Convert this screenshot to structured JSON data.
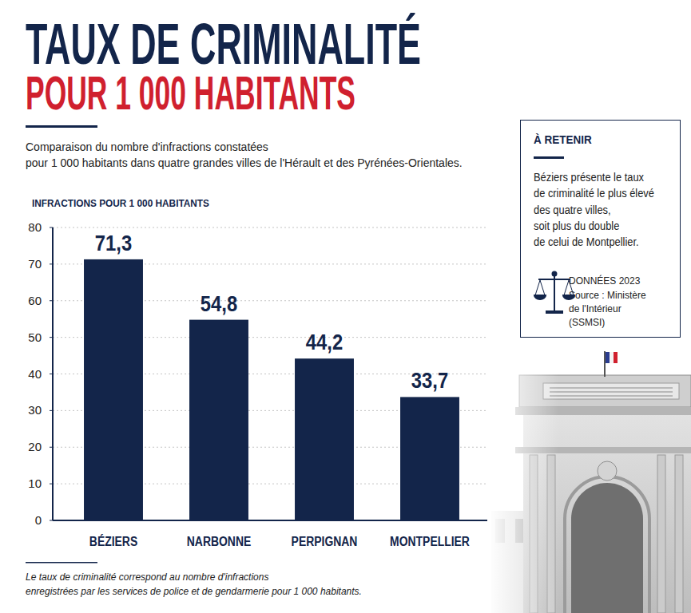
{
  "chart_data": {
    "type": "bar",
    "title": "TAUX DE CRIMINALITÉ",
    "subtitle": "POUR 1 000 HABITANTS",
    "description": [
      "Comparaison du nombre d'infractions constatées",
      "pour 1 000 habitants dans quatre grandes villes de l'Hérault et des Pyrénées-Orientales."
    ],
    "y_label": "INFRACTIONS POUR 1 000 HABITANTS",
    "categories": [
      "BÉZIERS",
      "NARBONNE",
      "PERPIGNAN",
      "MONTPELLIER"
    ],
    "values": [
      71.3,
      54.8,
      44.2,
      33.7
    ],
    "value_labels": [
      "71,3",
      "54,8",
      "44,2",
      "33,7"
    ],
    "color": "#13254a",
    "ylim": [
      0,
      80
    ],
    "yticks": [
      0,
      10,
      20,
      30,
      40,
      50,
      60,
      70,
      80
    ],
    "grid": true,
    "data_labels": true,
    "callout": {
      "title": "À RETENIR",
      "text": [
        "Béziers présente le taux",
        "de criminalité le plus élevé",
        "des quatre villes,",
        "soit plus du double",
        "de celui de Montpellier."
      ],
      "data_year": "DONNÉES 2023",
      "source": [
        "Source : Ministère",
        "de l'Intérieur",
        "(SSMSI)"
      ]
    },
    "footnote": [
      "Le taux de criminalité correspond au nombre d'infractions",
      "enregistrées par les services de police et de gendarmerie pour 1 000 habitants."
    ]
  }
}
